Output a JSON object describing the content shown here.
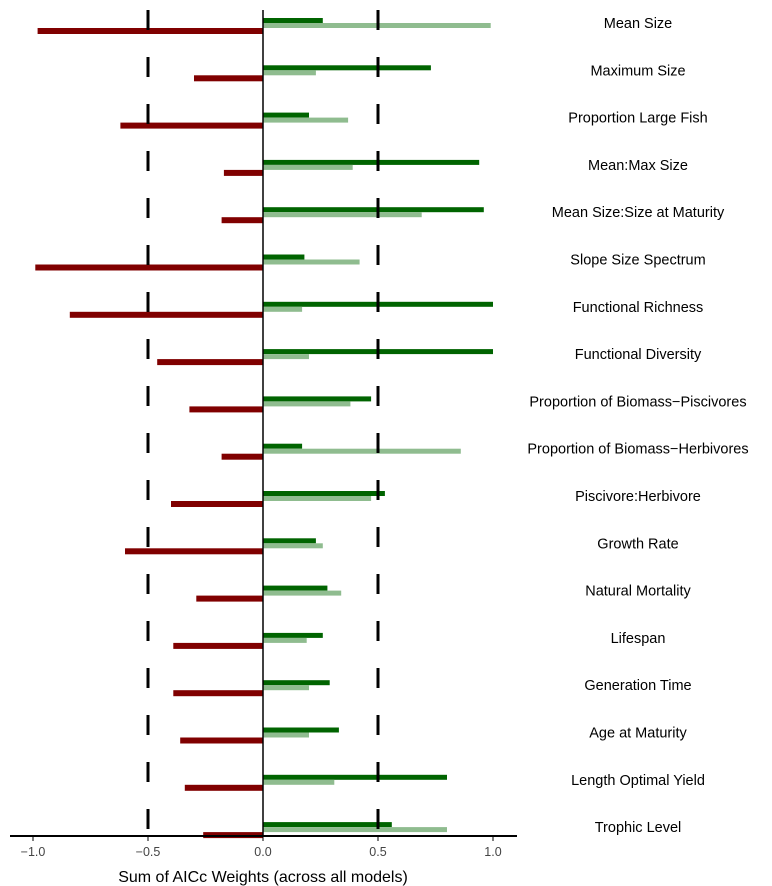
{
  "chart_data": {
    "type": "bar",
    "orientation": "horizontal",
    "xlabel": "Sum of AICc Weights (across all models)",
    "xlim": [
      -1.1,
      1.1
    ],
    "xticks": [
      -1.0,
      -0.5,
      0.0,
      0.5,
      1.0
    ],
    "xtick_labels": [
      "−1.0",
      "−0.5",
      "0.0",
      "0.5",
      "1.0"
    ],
    "reference_lines": [
      -0.5,
      0.5
    ],
    "grid": false,
    "categories": [
      "Mean Size",
      "Maximum Size",
      "Proportion Large Fish",
      "Mean:Max Size",
      "Mean Size:Size at Maturity",
      "Slope Size Spectrum",
      "Functional Richness",
      "Functional Diversity",
      "Proportion of Biomass−Piscivores",
      "Proportion of Biomass−Herbivores",
      "Piscivore:Herbivore",
      "Growth Rate",
      "Natural Mortality",
      "Lifespan",
      "Generation Time",
      "Age at Maturity",
      "Length Optimal Yield",
      "Trophic Level"
    ],
    "series": [
      {
        "color": "#006400",
        "values": [
          0.26,
          0.73,
          0.2,
          0.94,
          0.96,
          0.18,
          1.0,
          1.0,
          0.47,
          0.17,
          0.53,
          0.23,
          0.28,
          0.26,
          0.29,
          0.33,
          0.8,
          0.56
        ]
      },
      {
        "color": "#8fbc8f",
        "values": [
          0.99,
          0.23,
          0.37,
          0.39,
          0.69,
          0.42,
          0.17,
          0.2,
          0.38,
          0.86,
          0.47,
          0.26,
          0.34,
          0.19,
          0.2,
          0.2,
          0.31,
          0.8
        ]
      },
      {
        "color": "#800000",
        "values": [
          -0.98,
          -0.3,
          -0.62,
          -0.17,
          -0.18,
          -0.99,
          -0.84,
          -0.46,
          -0.32,
          -0.18,
          -0.4,
          -0.6,
          -0.29,
          -0.39,
          -0.39,
          -0.36,
          -0.34,
          -0.26
        ]
      }
    ]
  }
}
